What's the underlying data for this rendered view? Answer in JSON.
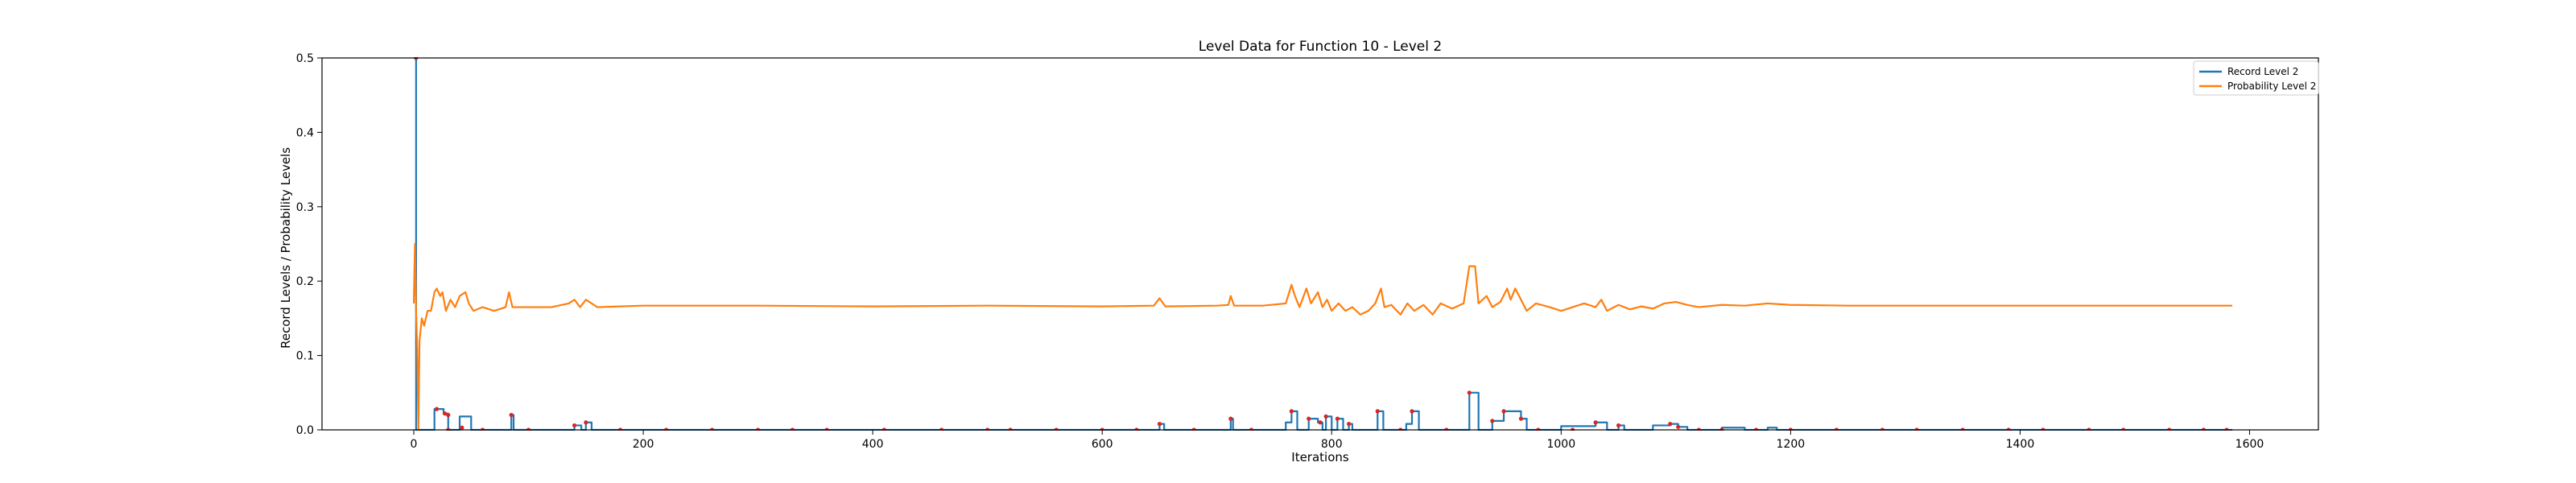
{
  "chart_data": {
    "type": "line",
    "title": "Level Data for Function 10 - Level 2",
    "xlabel": "Iterations",
    "ylabel": "Record Levels / Probability Levels",
    "xlim": [
      -80,
      1660
    ],
    "ylim": [
      0,
      0.5
    ],
    "xticks": [
      0,
      200,
      400,
      600,
      800,
      1000,
      1200,
      1400,
      1600
    ],
    "xtick_labels": [
      "0",
      "200",
      "400",
      "600",
      "800",
      "1000",
      "1200",
      "1400",
      "1600"
    ],
    "yticks": [
      0.0,
      0.1,
      0.2,
      0.3,
      0.4,
      0.5
    ],
    "ytick_labels": [
      "0.0",
      "0.1",
      "0.2",
      "0.3",
      "0.4",
      "0.5"
    ],
    "grid": false,
    "legend_position": "top-right",
    "series": [
      {
        "name": "Record Level 2",
        "color": "#1f77b4",
        "style": "step",
        "points": [
          [
            0,
            0.5
          ],
          [
            2,
            0.5
          ],
          [
            2,
            0.0
          ],
          [
            18,
            0.0
          ],
          [
            18,
            0.028
          ],
          [
            26,
            0.028
          ],
          [
            26,
            0.022
          ],
          [
            30,
            0.022
          ],
          [
            30,
            0.0
          ],
          [
            40,
            0.0
          ],
          [
            40,
            0.018
          ],
          [
            50,
            0.018
          ],
          [
            50,
            0.0
          ],
          [
            85,
            0.0
          ],
          [
            85,
            0.02
          ],
          [
            87,
            0.02
          ],
          [
            87,
            0.0
          ],
          [
            140,
            0.0
          ],
          [
            140,
            0.006
          ],
          [
            146,
            0.006
          ],
          [
            146,
            0.0
          ],
          [
            150,
            0.0
          ],
          [
            150,
            0.01
          ],
          [
            155,
            0.01
          ],
          [
            155,
            0.0
          ],
          [
            650,
            0.0
          ],
          [
            650,
            0.008
          ],
          [
            654,
            0.008
          ],
          [
            654,
            0.0
          ],
          [
            712,
            0.0
          ],
          [
            712,
            0.015
          ],
          [
            714,
            0.015
          ],
          [
            714,
            0.0
          ],
          [
            760,
            0.0
          ],
          [
            760,
            0.01
          ],
          [
            765,
            0.01
          ],
          [
            765,
            0.025
          ],
          [
            770,
            0.025
          ],
          [
            770,
            0.0
          ],
          [
            780,
            0.0
          ],
          [
            780,
            0.015
          ],
          [
            788,
            0.015
          ],
          [
            788,
            0.01
          ],
          [
            792,
            0.01
          ],
          [
            792,
            0.0
          ],
          [
            795,
            0.0
          ],
          [
            795,
            0.018
          ],
          [
            800,
            0.018
          ],
          [
            800,
            0.0
          ],
          [
            805,
            0.0
          ],
          [
            805,
            0.015
          ],
          [
            810,
            0.015
          ],
          [
            810,
            0.0
          ],
          [
            815,
            0.0
          ],
          [
            815,
            0.008
          ],
          [
            818,
            0.008
          ],
          [
            818,
            0.0
          ],
          [
            840,
            0.0
          ],
          [
            840,
            0.025
          ],
          [
            845,
            0.025
          ],
          [
            845,
            0.0
          ],
          [
            865,
            0.0
          ],
          [
            865,
            0.008
          ],
          [
            870,
            0.008
          ],
          [
            870,
            0.025
          ],
          [
            876,
            0.025
          ],
          [
            876,
            0.0
          ],
          [
            920,
            0.0
          ],
          [
            920,
            0.05
          ],
          [
            928,
            0.05
          ],
          [
            928,
            0.0
          ],
          [
            940,
            0.0
          ],
          [
            940,
            0.012
          ],
          [
            950,
            0.012
          ],
          [
            950,
            0.025
          ],
          [
            965,
            0.025
          ],
          [
            965,
            0.015
          ],
          [
            970,
            0.015
          ],
          [
            970,
            0.0
          ],
          [
            1000,
            0.0
          ],
          [
            1000,
            0.005
          ],
          [
            1030,
            0.005
          ],
          [
            1030,
            0.01
          ],
          [
            1040,
            0.01
          ],
          [
            1040,
            0.0
          ],
          [
            1050,
            0.0
          ],
          [
            1050,
            0.006
          ],
          [
            1055,
            0.006
          ],
          [
            1055,
            0.0
          ],
          [
            1080,
            0.0
          ],
          [
            1080,
            0.006
          ],
          [
            1095,
            0.006
          ],
          [
            1095,
            0.008
          ],
          [
            1102,
            0.008
          ],
          [
            1102,
            0.004
          ],
          [
            1110,
            0.004
          ],
          [
            1110,
            0.0
          ],
          [
            1140,
            0.0
          ],
          [
            1140,
            0.003
          ],
          [
            1160,
            0.003
          ],
          [
            1160,
            0.0
          ],
          [
            1180,
            0.0
          ],
          [
            1180,
            0.003
          ],
          [
            1188,
            0.003
          ],
          [
            1188,
            0.0
          ],
          [
            1585,
            0.0
          ]
        ]
      },
      {
        "name": "Probability Level 2",
        "color": "#ff7f0e",
        "style": "line",
        "points": [
          [
            0,
            0.17
          ],
          [
            1,
            0.25
          ],
          [
            2,
            0.16
          ],
          [
            3,
            0.11
          ],
          [
            4,
            0.0
          ],
          [
            5,
            0.12
          ],
          [
            7,
            0.15
          ],
          [
            9,
            0.14
          ],
          [
            12,
            0.16
          ],
          [
            15,
            0.16
          ],
          [
            18,
            0.185
          ],
          [
            20,
            0.19
          ],
          [
            23,
            0.18
          ],
          [
            25,
            0.185
          ],
          [
            28,
            0.16
          ],
          [
            32,
            0.175
          ],
          [
            36,
            0.165
          ],
          [
            40,
            0.18
          ],
          [
            45,
            0.185
          ],
          [
            48,
            0.17
          ],
          [
            52,
            0.16
          ],
          [
            60,
            0.165
          ],
          [
            70,
            0.16
          ],
          [
            80,
            0.165
          ],
          [
            83,
            0.185
          ],
          [
            86,
            0.165
          ],
          [
            100,
            0.165
          ],
          [
            120,
            0.165
          ],
          [
            135,
            0.17
          ],
          [
            140,
            0.175
          ],
          [
            145,
            0.165
          ],
          [
            150,
            0.175
          ],
          [
            160,
            0.165
          ],
          [
            200,
            0.167
          ],
          [
            300,
            0.167
          ],
          [
            400,
            0.166
          ],
          [
            500,
            0.167
          ],
          [
            600,
            0.166
          ],
          [
            645,
            0.167
          ],
          [
            650,
            0.177
          ],
          [
            655,
            0.166
          ],
          [
            700,
            0.167
          ],
          [
            710,
            0.168
          ],
          [
            712,
            0.18
          ],
          [
            715,
            0.167
          ],
          [
            740,
            0.167
          ],
          [
            760,
            0.17
          ],
          [
            765,
            0.195
          ],
          [
            768,
            0.18
          ],
          [
            772,
            0.165
          ],
          [
            778,
            0.19
          ],
          [
            782,
            0.17
          ],
          [
            788,
            0.185
          ],
          [
            792,
            0.165
          ],
          [
            796,
            0.175
          ],
          [
            800,
            0.16
          ],
          [
            806,
            0.17
          ],
          [
            812,
            0.16
          ],
          [
            818,
            0.165
          ],
          [
            825,
            0.155
          ],
          [
            832,
            0.16
          ],
          [
            838,
            0.17
          ],
          [
            843,
            0.19
          ],
          [
            846,
            0.165
          ],
          [
            852,
            0.168
          ],
          [
            860,
            0.155
          ],
          [
            866,
            0.17
          ],
          [
            872,
            0.16
          ],
          [
            880,
            0.168
          ],
          [
            888,
            0.155
          ],
          [
            895,
            0.17
          ],
          [
            905,
            0.163
          ],
          [
            915,
            0.17
          ],
          [
            920,
            0.22
          ],
          [
            925,
            0.22
          ],
          [
            928,
            0.17
          ],
          [
            935,
            0.18
          ],
          [
            940,
            0.165
          ],
          [
            947,
            0.172
          ],
          [
            953,
            0.19
          ],
          [
            956,
            0.175
          ],
          [
            960,
            0.19
          ],
          [
            965,
            0.175
          ],
          [
            970,
            0.16
          ],
          [
            978,
            0.17
          ],
          [
            990,
            0.165
          ],
          [
            1000,
            0.16
          ],
          [
            1010,
            0.165
          ],
          [
            1020,
            0.17
          ],
          [
            1030,
            0.165
          ],
          [
            1035,
            0.175
          ],
          [
            1040,
            0.16
          ],
          [
            1050,
            0.168
          ],
          [
            1060,
            0.162
          ],
          [
            1070,
            0.166
          ],
          [
            1080,
            0.163
          ],
          [
            1090,
            0.17
          ],
          [
            1100,
            0.172
          ],
          [
            1110,
            0.168
          ],
          [
            1120,
            0.165
          ],
          [
            1140,
            0.168
          ],
          [
            1160,
            0.167
          ],
          [
            1180,
            0.17
          ],
          [
            1200,
            0.168
          ],
          [
            1250,
            0.167
          ],
          [
            1300,
            0.167
          ],
          [
            1400,
            0.167
          ],
          [
            1500,
            0.167
          ],
          [
            1585,
            0.167
          ]
        ]
      }
    ],
    "markers": {
      "color": "#d62728",
      "points": [
        [
          2,
          0.5
        ],
        [
          20,
          0.028
        ],
        [
          27,
          0.022
        ],
        [
          30,
          0.02
        ],
        [
          42,
          0.003
        ],
        [
          85,
          0.02
        ],
        [
          140,
          0.006
        ],
        [
          150,
          0.01
        ],
        [
          650,
          0.008
        ],
        [
          712,
          0.015
        ],
        [
          765,
          0.025
        ],
        [
          780,
          0.015
        ],
        [
          790,
          0.01
        ],
        [
          795,
          0.018
        ],
        [
          805,
          0.015
        ],
        [
          815,
          0.008
        ],
        [
          840,
          0.025
        ],
        [
          870,
          0.025
        ],
        [
          920,
          0.05
        ],
        [
          940,
          0.012
        ],
        [
          950,
          0.025
        ],
        [
          965,
          0.015
        ],
        [
          1030,
          0.01
        ],
        [
          1050,
          0.006
        ],
        [
          1095,
          0.008
        ],
        [
          1102,
          0.004
        ],
        [
          30,
          0.0
        ],
        [
          60,
          0.0
        ],
        [
          100,
          0.0
        ],
        [
          180,
          0.0
        ],
        [
          220,
          0.0
        ],
        [
          260,
          0.0
        ],
        [
          300,
          0.0
        ],
        [
          330,
          0.0
        ],
        [
          360,
          0.0
        ],
        [
          410,
          0.0
        ],
        [
          460,
          0.0
        ],
        [
          500,
          0.0
        ],
        [
          520,
          0.0
        ],
        [
          560,
          0.0
        ],
        [
          600,
          0.0
        ],
        [
          630,
          0.0
        ],
        [
          680,
          0.0
        ],
        [
          730,
          0.0
        ],
        [
          860,
          0.0
        ],
        [
          900,
          0.0
        ],
        [
          980,
          0.0
        ],
        [
          1010,
          0.0
        ],
        [
          1120,
          0.0
        ],
        [
          1140,
          0.0
        ],
        [
          1170,
          0.0
        ],
        [
          1200,
          0.0
        ],
        [
          1240,
          0.0
        ],
        [
          1280,
          0.0
        ],
        [
          1310,
          0.0
        ],
        [
          1350,
          0.0
        ],
        [
          1390,
          0.0
        ],
        [
          1420,
          0.0
        ],
        [
          1460,
          0.0
        ],
        [
          1490,
          0.0
        ],
        [
          1530,
          0.0
        ],
        [
          1560,
          0.0
        ],
        [
          1580,
          0.0
        ]
      ]
    }
  }
}
